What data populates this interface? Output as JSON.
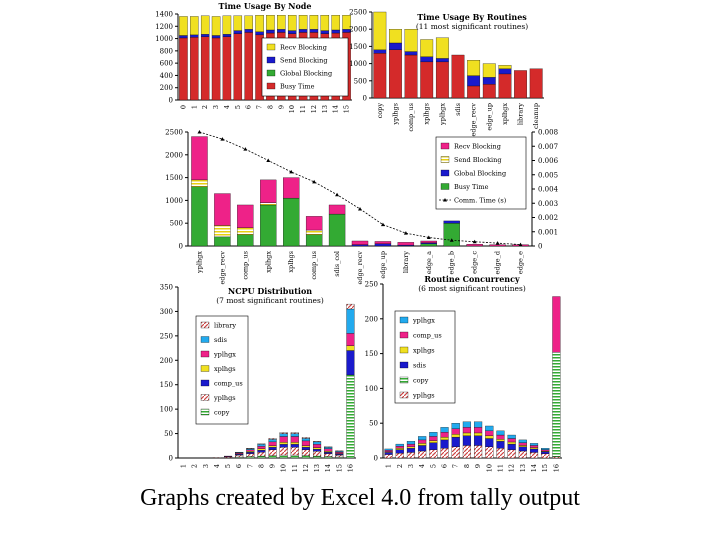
{
  "caption": "Graphs created by Excel 4.0 from tally output",
  "colors": {
    "busy": "#d42a2a",
    "global": "#33aa33",
    "send": "#1a1acc",
    "recv": "#f0e020",
    "magenta": "#ee2288",
    "cyan": "#22aaee",
    "hatch": "#cc6666"
  },
  "chart_data": [
    {
      "type": "bar",
      "stacked": true,
      "title": "Time Usage By Node",
      "categories": [
        "0",
        "1",
        "2",
        "3",
        "4",
        "5",
        "6",
        "7",
        "8",
        "9",
        "10",
        "11",
        "12",
        "13",
        "14",
        "15"
      ],
      "ylim": [
        0,
        1400
      ],
      "yticks": [
        "0",
        "200",
        "400",
        "600",
        "800",
        "1000",
        "1200",
        "1400"
      ],
      "series": [
        {
          "name": "Busy Time",
          "color": "#d42a2a",
          "values": [
            1010,
            1020,
            1030,
            1010,
            1030,
            1080,
            1100,
            1060,
            1090,
            1100,
            1080,
            1100,
            1100,
            1080,
            1090,
            1100
          ]
        },
        {
          "name": "Global Blocking",
          "color": "#33aa33",
          "values": [
            0,
            0,
            0,
            0,
            0,
            0,
            0,
            0,
            0,
            0,
            0,
            0,
            0,
            0,
            0,
            0
          ]
        },
        {
          "name": "Send Blocking",
          "color": "#1a1acc",
          "values": [
            40,
            40,
            40,
            40,
            40,
            50,
            50,
            50,
            50,
            50,
            50,
            50,
            50,
            50,
            50,
            50
          ]
        },
        {
          "name": "Recv Blocking",
          "color": "#f0e020",
          "values": [
            310,
            300,
            300,
            310,
            300,
            240,
            220,
            270,
            240,
            230,
            250,
            230,
            230,
            250,
            240,
            230
          ]
        }
      ],
      "legend_order": [
        "Recv Blocking",
        "Send Blocking",
        "Global Blocking",
        "Busy Time"
      ]
    },
    {
      "type": "bar",
      "stacked": true,
      "title": "Time Usage By Routines",
      "subtitle": "(11 most significant routines)",
      "categories": [
        "copy",
        "yplhgs",
        "comp_us",
        "xplhgs",
        "yplhgx",
        "sdis",
        "edge_recv",
        "edge_up",
        "xplhgx",
        "library",
        "cleanup"
      ],
      "ylim": [
        0,
        2500
      ],
      "yticks": [
        "0",
        "500",
        "1000",
        "1500",
        "2000",
        "2500"
      ],
      "series": [
        {
          "name": "Busy Time",
          "color": "#d42a2a",
          "values": [
            1300,
            1400,
            1250,
            1050,
            1050,
            1250,
            350,
            400,
            700,
            800,
            850
          ]
        },
        {
          "name": "Global Blocking",
          "color": "#33aa33",
          "values": [
            0,
            0,
            0,
            0,
            0,
            0,
            0,
            0,
            0,
            0,
            0
          ]
        },
        {
          "name": "Send Blocking",
          "color": "#1a1acc",
          "values": [
            100,
            200,
            100,
            150,
            100,
            0,
            300,
            200,
            150,
            0,
            0
          ]
        },
        {
          "name": "Recv Blocking",
          "color": "#f0e020",
          "values": [
            1100,
            400,
            650,
            500,
            600,
            0,
            450,
            400,
            100,
            0,
            0
          ]
        }
      ]
    },
    {
      "type": "bar",
      "stacked": true,
      "title": "",
      "categories": [
        "yplhgx",
        "edge_recv",
        "comp_us",
        "xplhgx",
        "xplhgs",
        "comp_us",
        "sdis_col",
        "edge_recv",
        "edge_up",
        "library",
        "edge_a",
        "edge_b",
        "edge_c",
        "edge_d",
        "edge_e"
      ],
      "ylim": [
        0,
        2500
      ],
      "yticks": [
        "0",
        "500",
        "1000",
        "1500",
        "2000",
        "2500"
      ],
      "y2ticks": [
        "0",
        "0.001",
        "0.002",
        "0.003",
        "0.004",
        "0.005",
        "0.006",
        "0.007",
        "0.008"
      ],
      "series": [
        {
          "name": "Busy Time",
          "color": "#33aa33",
          "values": [
            1300,
            200,
            250,
            900,
            1050,
            250,
            700,
            0,
            0,
            0,
            50,
            500,
            0,
            0,
            0
          ]
        },
        {
          "name": "Global Blocking",
          "color": "#1a1acc",
          "values": [
            0,
            0,
            0,
            0,
            0,
            0,
            0,
            30,
            50,
            20,
            20,
            50,
            0,
            0,
            0
          ]
        },
        {
          "name": "Send Blocking",
          "color": "#f0e020",
          "values": [
            150,
            250,
            150,
            50,
            0,
            100,
            0,
            0,
            0,
            0,
            0,
            0,
            0,
            0,
            0
          ]
        },
        {
          "name": "Recv Blocking",
          "color": "#ee2288",
          "values": [
            950,
            700,
            500,
            500,
            450,
            300,
            200,
            80,
            50,
            60,
            40,
            0,
            40,
            30,
            30
          ]
        }
      ],
      "line": {
        "name": "Comm. Time (s)",
        "values": [
          0.008,
          0.0075,
          0.0068,
          0.006,
          0.0052,
          0.0045,
          0.0036,
          0.0026,
          0.0015,
          0.0009,
          0.0006,
          0.0004,
          0.0003,
          0.0002,
          0.0001
        ]
      },
      "legend_order": [
        "Recv Blocking",
        "Send Blocking",
        "Global Blocking",
        "Busy Time",
        "Comm. Time (s)"
      ]
    },
    {
      "type": "bar",
      "stacked": true,
      "title": "NCPU Distribution",
      "subtitle": "(7 most significant routines)",
      "categories": [
        "1",
        "2",
        "3",
        "4",
        "5",
        "6",
        "7",
        "8",
        "9",
        "10",
        "11",
        "12",
        "13",
        "14",
        "15",
        "16"
      ],
      "ylim": [
        0,
        350
      ],
      "yticks": [
        "0",
        "50",
        "100",
        "150",
        "200",
        "250",
        "300",
        "350"
      ],
      "series": [
        {
          "name": "copy",
          "color": "#33aa33",
          "values": [
            0,
            0,
            0,
            0,
            0,
            2,
            3,
            4,
            5,
            6,
            6,
            5,
            4,
            3,
            2,
            170
          ]
        },
        {
          "name": "yplhgs",
          "color": "#cc6666",
          "values": [
            0,
            0,
            0,
            1,
            2,
            4,
            6,
            8,
            12,
            16,
            16,
            12,
            10,
            6,
            4,
            0
          ]
        },
        {
          "name": "comp_us",
          "color": "#1a1acc",
          "values": [
            0,
            0,
            0,
            0,
            1,
            2,
            3,
            4,
            5,
            6,
            6,
            5,
            4,
            3,
            2,
            50
          ]
        },
        {
          "name": "xplhgs",
          "color": "#f0e020",
          "values": [
            0,
            0,
            0,
            0,
            0,
            1,
            2,
            3,
            3,
            4,
            4,
            3,
            3,
            2,
            1,
            10
          ]
        },
        {
          "name": "yplhgx",
          "color": "#ee2288",
          "values": [
            0,
            0,
            0,
            0,
            1,
            2,
            3,
            5,
            8,
            12,
            12,
            10,
            7,
            5,
            3,
            25
          ]
        },
        {
          "name": "sdis",
          "color": "#22aaee",
          "values": [
            0,
            0,
            0,
            0,
            0,
            1,
            2,
            4,
            5,
            6,
            6,
            5,
            5,
            3,
            2,
            50
          ]
        },
        {
          "name": "library",
          "color": "#cc6666",
          "values": [
            0,
            0,
            0,
            0,
            0,
            0,
            1,
            1,
            2,
            2,
            2,
            2,
            1,
            1,
            1,
            10
          ]
        }
      ],
      "legend_order": [
        "library",
        "sdis",
        "yplhgx",
        "xplhgs",
        "comp_us",
        "yplhgs",
        "copy"
      ]
    },
    {
      "type": "bar",
      "stacked": true,
      "title": "Routine Concurrency",
      "subtitle": "(6 most significant routines)",
      "categories": [
        "1",
        "2",
        "3",
        "4",
        "5",
        "6",
        "7",
        "8",
        "9",
        "10",
        "11",
        "12",
        "13",
        "14",
        "15",
        "16"
      ],
      "ylim": [
        0,
        250
      ],
      "yticks": [
        "0",
        "50",
        "100",
        "150",
        "200",
        "250"
      ],
      "series": [
        {
          "name": "yplhgs",
          "color": "#cc6666",
          "values": [
            5,
            7,
            8,
            10,
            12,
            14,
            16,
            18,
            18,
            16,
            14,
            12,
            10,
            8,
            6,
            2
          ]
        },
        {
          "name": "copy",
          "color": "#33aa33",
          "values": [
            0,
            0,
            0,
            0,
            0,
            0,
            0,
            0,
            0,
            0,
            0,
            0,
            0,
            0,
            0,
            150
          ]
        },
        {
          "name": "sdis",
          "color": "#1a1acc",
          "values": [
            3,
            5,
            6,
            8,
            10,
            12,
            14,
            14,
            14,
            12,
            10,
            8,
            6,
            5,
            3,
            0
          ]
        },
        {
          "name": "xplhgs",
          "color": "#f0e020",
          "values": [
            1,
            2,
            2,
            3,
            3,
            4,
            4,
            4,
            4,
            4,
            3,
            3,
            2,
            2,
            1,
            0
          ]
        },
        {
          "name": "comp_us",
          "color": "#ee2288",
          "values": [
            2,
            3,
            4,
            5,
            6,
            7,
            8,
            8,
            8,
            7,
            6,
            5,
            4,
            3,
            2,
            80
          ]
        },
        {
          "name": "yplhgx",
          "color": "#22aaee",
          "values": [
            2,
            3,
            4,
            5,
            6,
            7,
            8,
            8,
            8,
            7,
            6,
            5,
            4,
            3,
            2,
            0
          ]
        }
      ],
      "legend_order": [
        "yplhgx",
        "comp_us",
        "xplhgs",
        "sdis",
        "copy",
        "yplhgs"
      ]
    }
  ]
}
